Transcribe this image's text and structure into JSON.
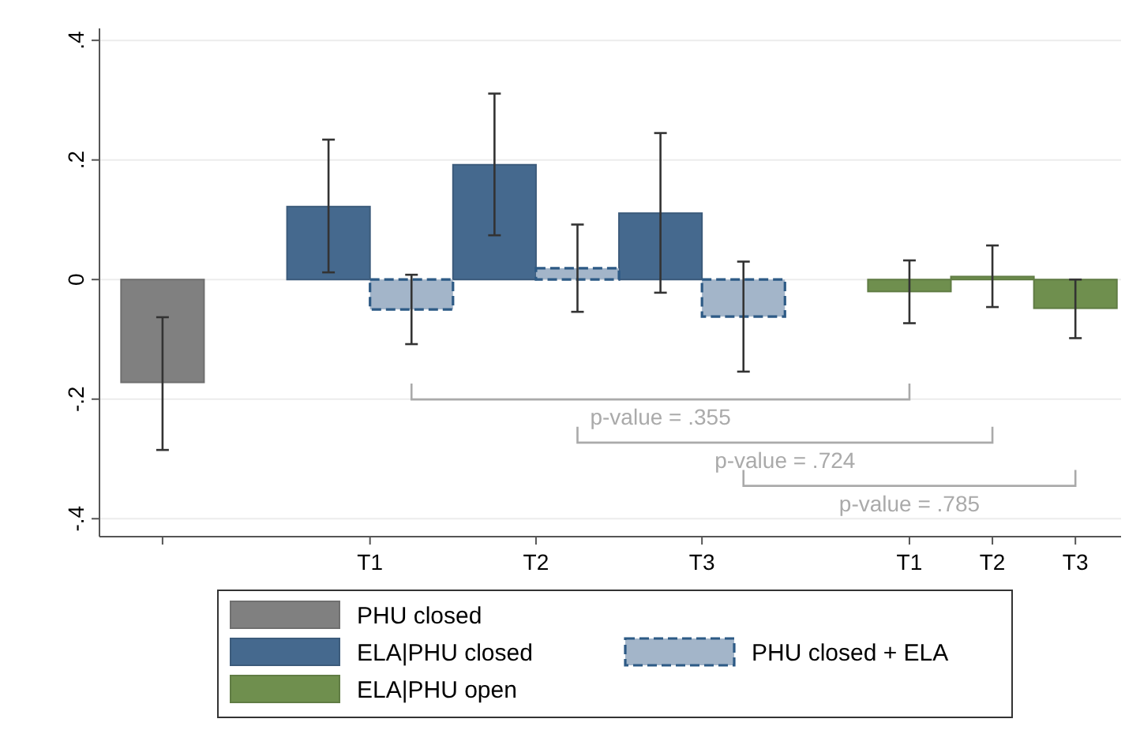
{
  "chart_data": {
    "type": "bar",
    "categories": [
      null,
      "T1",
      "T2",
      "T3",
      "T1",
      "T2",
      "T3"
    ],
    "series": [
      {
        "name": "PHU closed",
        "color": "#808080",
        "values": [
          -0.172,
          null,
          null,
          null,
          null,
          null,
          null
        ],
        "errors": [
          [
            -0.285,
            -0.063
          ],
          null,
          null,
          null,
          null,
          null,
          null
        ]
      },
      {
        "name": "ELA|PHU closed",
        "color": "#45698e",
        "values": [
          null,
          0.122,
          0.192,
          0.111,
          null,
          null,
          null
        ],
        "errors": [
          null,
          [
            0.012,
            0.234
          ],
          [
            0.074,
            0.311
          ],
          [
            -0.022,
            0.245
          ],
          null,
          null,
          null
        ]
      },
      {
        "name": "PHU closed + ELA",
        "color": "#a3b5c9",
        "line_style": "dashed",
        "values": [
          null,
          -0.05,
          0.019,
          -0.062,
          null,
          null,
          null
        ],
        "errors": [
          null,
          [
            -0.108,
            0.008
          ],
          [
            -0.054,
            0.092
          ],
          [
            -0.154,
            0.03
          ],
          null,
          null,
          null
        ]
      },
      {
        "name": "ELA|PHU open",
        "color": "#6f8f4e",
        "values": [
          null,
          null,
          null,
          null,
          -0.02,
          0.005,
          -0.048
        ],
        "errors": [
          null,
          null,
          null,
          null,
          [
            -0.073,
            0.032
          ],
          [
            -0.046,
            0.057
          ],
          [
            -0.098,
            0
          ]
        ]
      }
    ],
    "ylim": [
      -0.43,
      0.42
    ],
    "yticks": [
      {
        "value": -0.4,
        "label": "-.4"
      },
      {
        "value": -0.2,
        "label": "-.2"
      },
      0,
      {
        "value": 0.2,
        "label": ".2"
      },
      {
        "value": 0.4,
        "label": ".4"
      }
    ],
    "grid": "y",
    "legend": "bottom",
    "annotations": [
      "p-value = .355",
      "p-value = .724",
      "p-value = .785"
    ]
  }
}
